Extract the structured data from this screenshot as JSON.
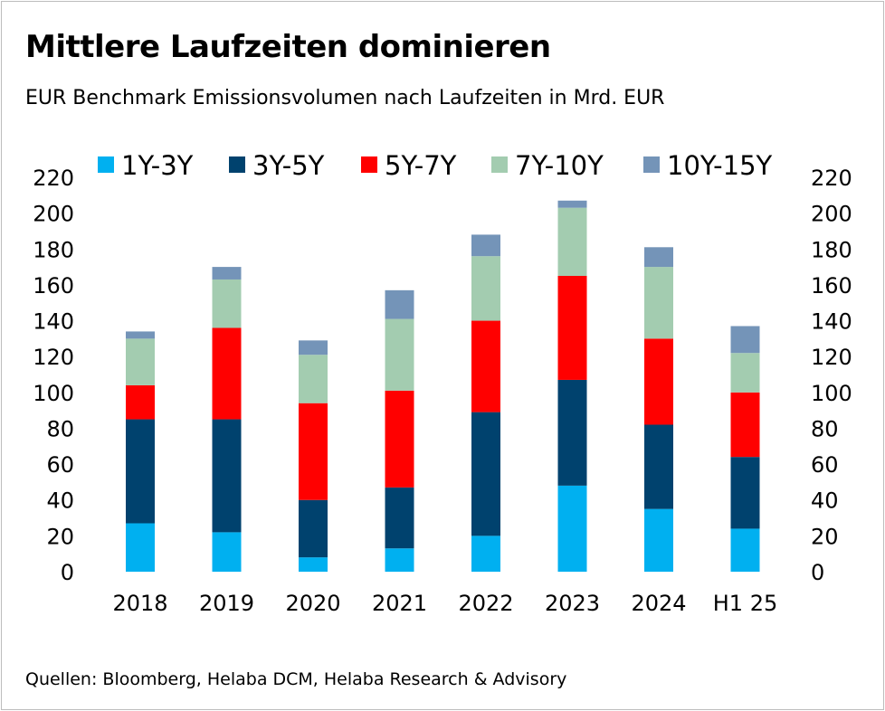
{
  "title": "Mittlere Laufzeiten dominieren",
  "subtitle": "EUR Benchmark Emissionsvolumen nach Laufzeiten in Mrd. EUR",
  "source": "Quellen: Bloomberg, Helaba DCM, Helaba Research & Advisory",
  "chart_data": {
    "type": "bar",
    "stacked": true,
    "categories": [
      "2018",
      "2019",
      "2020",
      "2021",
      "2022",
      "2023",
      "2024",
      "H1 25"
    ],
    "series": [
      {
        "name": "1Y-3Y",
        "color": "#00b0f0",
        "values": [
          27,
          22,
          8,
          13,
          20,
          48,
          35,
          24
        ]
      },
      {
        "name": "3Y-5Y",
        "color": "#00426e",
        "values": [
          58,
          63,
          32,
          34,
          69,
          59,
          47,
          40
        ]
      },
      {
        "name": "5Y-7Y",
        "color": "#ff0000",
        "values": [
          19,
          51,
          54,
          54,
          51,
          58,
          48,
          36
        ]
      },
      {
        "name": "7Y-10Y",
        "color": "#a3ccb0",
        "values": [
          26,
          27,
          27,
          40,
          36,
          38,
          40,
          22
        ]
      },
      {
        "name": "10Y-15Y",
        "color": "#7494b8",
        "values": [
          4,
          7,
          8,
          16,
          12,
          4,
          11,
          15
        ]
      }
    ],
    "ylim": [
      0,
      220
    ],
    "yticks": [
      0,
      20,
      40,
      60,
      80,
      100,
      120,
      140,
      160,
      180,
      200,
      220
    ],
    "secondary_axis": true,
    "legend_position": "top",
    "xlabel": "",
    "ylabel": ""
  }
}
